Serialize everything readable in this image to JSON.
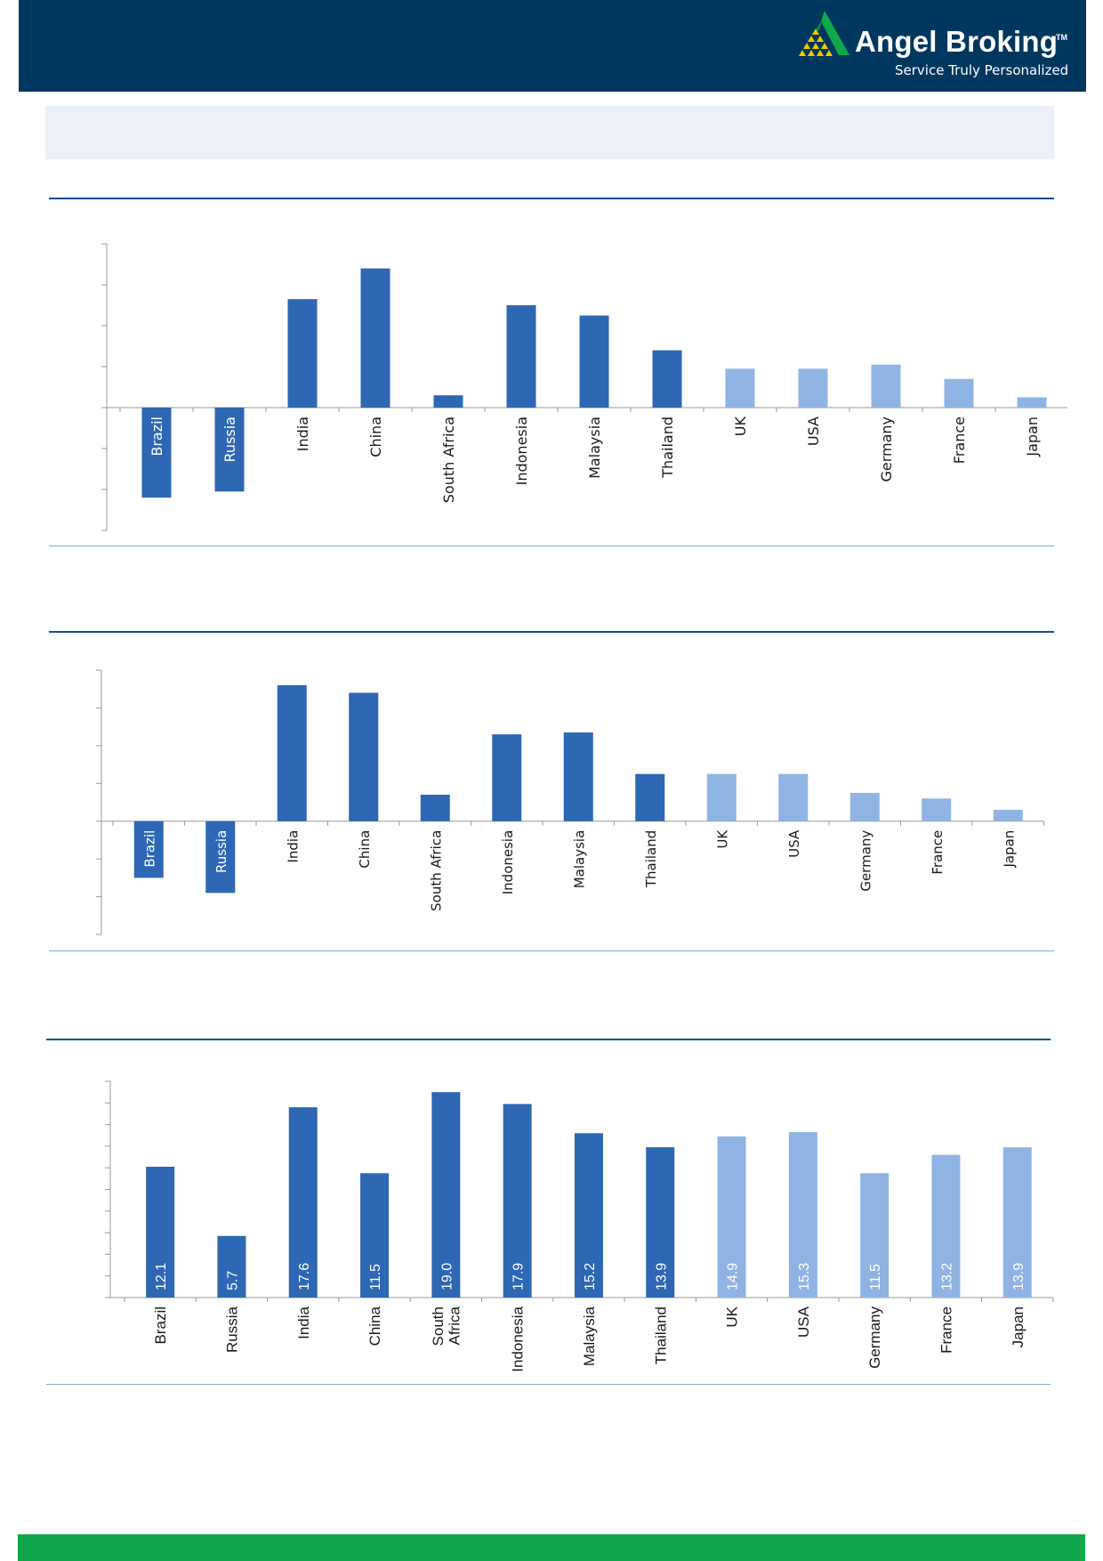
{
  "header": {
    "brand_name": "Angel Broking",
    "trademark": "TM",
    "tagline": "Service Truly Personalized"
  },
  "colors": {
    "header_bg": "#00375f",
    "emerging_bar": "#2e67b3",
    "developed_bar": "#8fb4e3",
    "footer_bg": "#10a84a"
  },
  "chart_data": [
    {
      "type": "bar",
      "categories": [
        "Brazil",
        "Russia",
        "India",
        "China",
        "South Africa",
        "Indonesia",
        "Malaysia",
        "Thailand",
        "UK",
        "USA",
        "Germany",
        "France",
        "Japan"
      ],
      "groups": [
        "emerging",
        "emerging",
        "emerging",
        "emerging",
        "emerging",
        "emerging",
        "emerging",
        "emerging",
        "developed",
        "developed",
        "developed",
        "developed",
        "developed"
      ],
      "values": [
        -4.4,
        -4.1,
        5.3,
        6.8,
        0.6,
        5.0,
        4.5,
        2.8,
        1.9,
        1.9,
        2.1,
        1.4,
        0.5
      ],
      "ylim": [
        -6,
        8
      ],
      "y_tick_step": 2,
      "grid": false,
      "labels_rotated": true
    },
    {
      "type": "bar",
      "categories": [
        "Brazil",
        "Russia",
        "India",
        "China",
        "South Africa",
        "Indonesia",
        "Malaysia",
        "Thailand",
        "UK",
        "USA",
        "Germany",
        "France",
        "Japan"
      ],
      "groups": [
        "emerging",
        "emerging",
        "emerging",
        "emerging",
        "emerging",
        "emerging",
        "emerging",
        "emerging",
        "developed",
        "developed",
        "developed",
        "developed",
        "developed"
      ],
      "values": [
        -3.0,
        -3.8,
        7.2,
        6.8,
        1.4,
        4.6,
        4.7,
        2.5,
        2.5,
        2.5,
        1.5,
        1.2,
        0.6
      ],
      "ylim": [
        -6,
        8
      ],
      "y_tick_step": 2,
      "grid": false,
      "labels_rotated": true
    },
    {
      "type": "bar",
      "categories": [
        "Brazil",
        "Russia",
        "India",
        "China",
        "South\nAfrica",
        "Indonesia",
        "Malaysia",
        "Thailand",
        "UK",
        "USA",
        "Germany",
        "France",
        "Japan"
      ],
      "groups": [
        "emerging",
        "emerging",
        "emerging",
        "emerging",
        "emerging",
        "emerging",
        "emerging",
        "emerging",
        "developed",
        "developed",
        "developed",
        "developed",
        "developed"
      ],
      "values": [
        12.1,
        5.7,
        17.6,
        11.5,
        19.0,
        17.9,
        15.2,
        13.9,
        14.9,
        15.3,
        11.5,
        13.2,
        13.9
      ],
      "data_labels": [
        "12.1",
        "5.7",
        "17.6",
        "11.5",
        "19.0",
        "17.9",
        "15.2",
        "13.9",
        "14.9",
        "15.3",
        "11.5",
        "13.2",
        "13.9"
      ],
      "ylim": [
        0,
        20
      ],
      "y_tick_step": 2,
      "grid": false,
      "labels_rotated": true
    }
  ]
}
